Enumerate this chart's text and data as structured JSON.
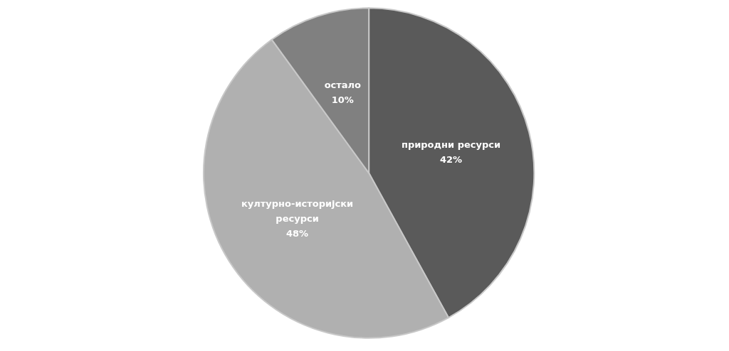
{
  "chart_data": {
    "type": "pie",
    "categories": [
      "природни ресурси",
      "културно-историјски ресурси",
      "остало"
    ],
    "values": [
      42,
      48,
      10
    ],
    "colors": [
      "#5a5a5a",
      "#b0b0b0",
      "#808080"
    ],
    "value_labels": [
      "42%",
      "48%",
      "10%"
    ],
    "legend": false
  }
}
